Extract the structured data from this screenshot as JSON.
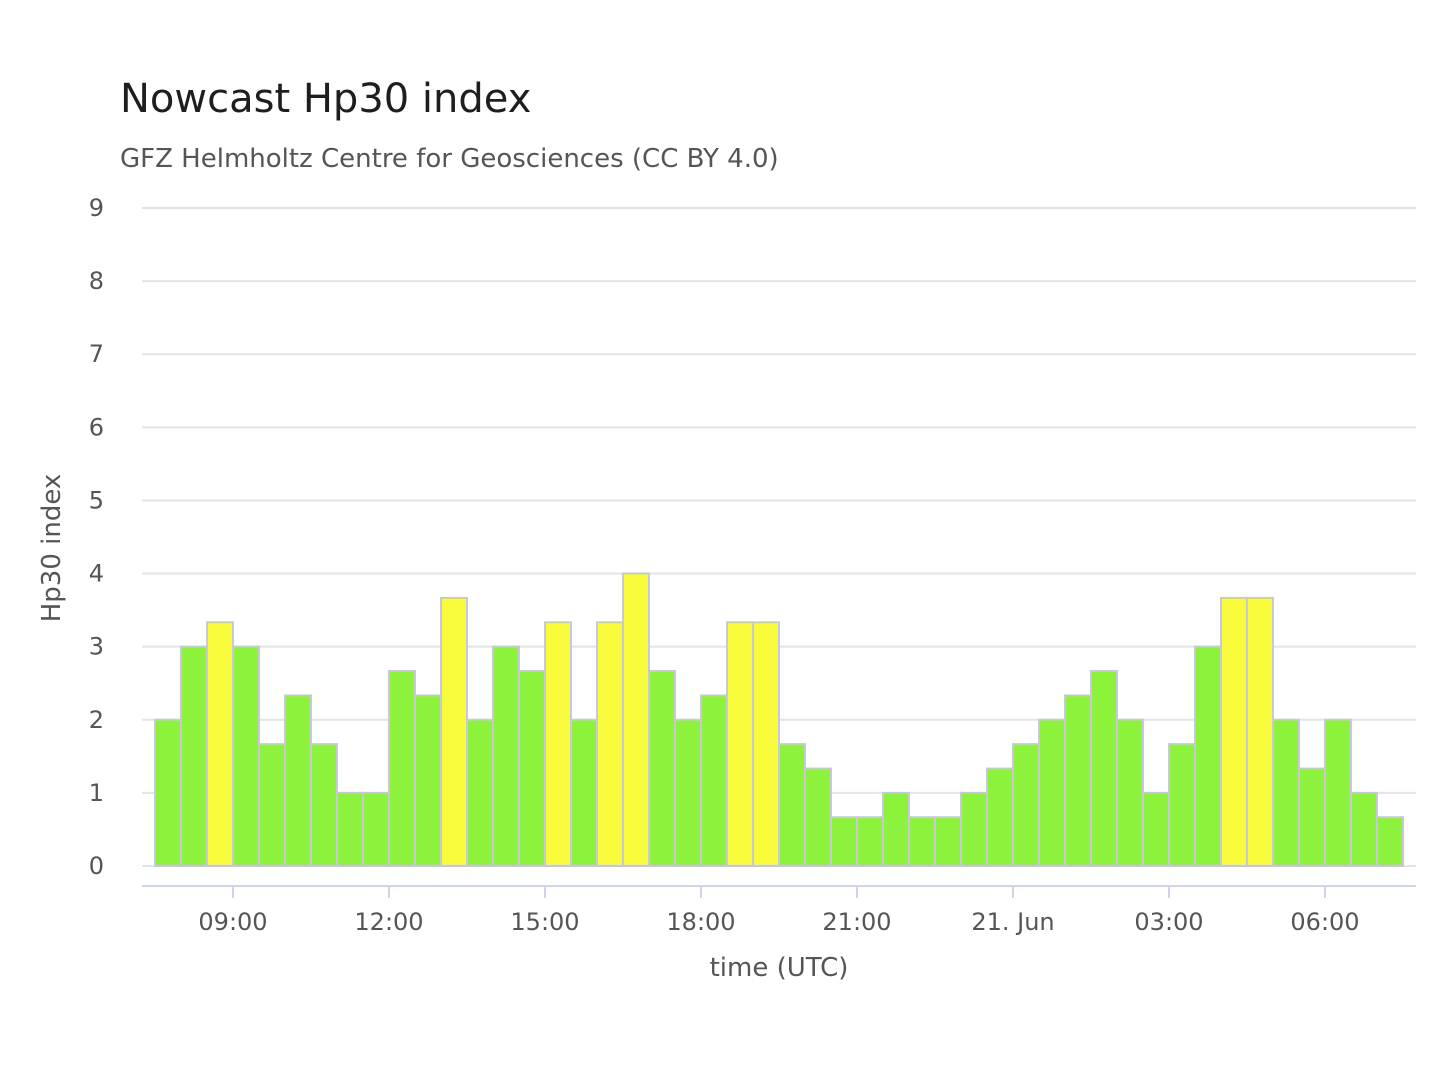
{
  "chart_data": {
    "type": "bar",
    "title": "Nowcast Hp30 index",
    "subtitle": "GFZ Helmholtz Centre for Geosciences (CC BY 4.0)",
    "xlabel": "time (UTC)",
    "ylabel": "Hp30 index",
    "ylim": [
      0,
      9
    ],
    "yticks": [
      "0",
      "1",
      "2",
      "3",
      "4",
      "5",
      "6",
      "7",
      "8",
      "9"
    ],
    "xticks": [
      {
        "label": "09:00",
        "index": 3
      },
      {
        "label": "12:00",
        "index": 9
      },
      {
        "label": "15:00",
        "index": 15
      },
      {
        "label": "18:00",
        "index": 21
      },
      {
        "label": "21:00",
        "index": 27
      },
      {
        "label": "21. Jun",
        "index": 33
      },
      {
        "label": "03:00",
        "index": 39
      },
      {
        "label": "06:00",
        "index": 45
      }
    ],
    "bar_interval": "30 min",
    "first_bar": "07:30",
    "values": [
      2,
      3,
      3.333,
      3,
      1.667,
      2.333,
      1.667,
      1,
      1,
      2.667,
      2.333,
      3.667,
      2,
      3,
      2.667,
      3.333,
      2,
      3.333,
      4,
      2.667,
      2,
      2.333,
      3.333,
      3.333,
      1.667,
      1.333,
      0.667,
      0.667,
      1,
      0.667,
      0.667,
      1,
      1.333,
      1.667,
      2,
      2.333,
      2.667,
      2,
      1,
      1.667,
      3,
      3.667,
      3.667,
      2,
      1.333,
      2,
      1,
      0.667
    ],
    "colors": {
      "quiet": "#8cf23c",
      "active": "#f8fc3c",
      "grid": "#e2e4ea",
      "axis": "#ccd6eb"
    },
    "active_threshold": 3.2,
    "grid": true,
    "legend": "none"
  }
}
